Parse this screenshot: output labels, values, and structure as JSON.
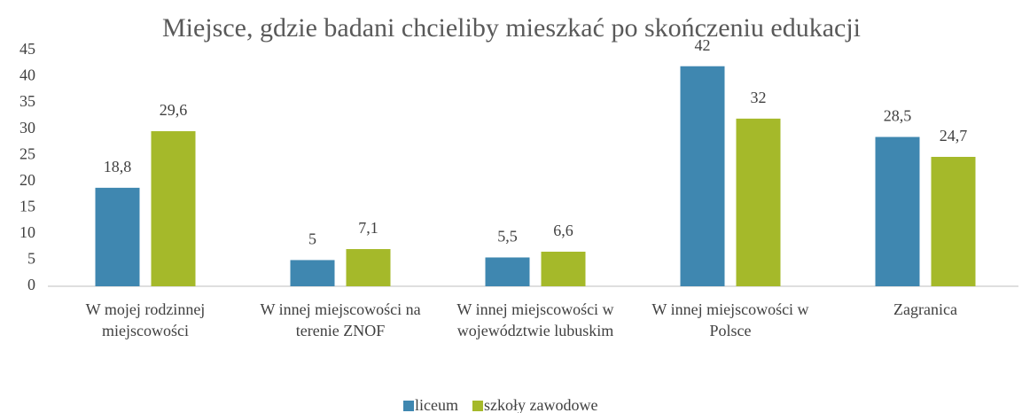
{
  "chart_data": {
    "type": "bar",
    "title": "Miejsce, gdzie badani chcieliby mieszkać po skończeniu edukacji",
    "categories": [
      "W mojej rodzinnej miejscowości",
      "W innej miejscowości na terenie ZNOF",
      "W innej miejscowości w województwie lubuskim",
      "W innej miejscowości w Polsce",
      "Zagranica"
    ],
    "series": [
      {
        "name": "liceum",
        "color": "#3f87b0",
        "values": [
          18.8,
          5,
          5.5,
          42,
          28.5
        ],
        "value_labels": [
          "18,8",
          "5",
          "5,5",
          "42",
          "28,5"
        ]
      },
      {
        "name": "szkoły zawodowe",
        "color": "#a5b92a",
        "values": [
          29.6,
          7.1,
          6.6,
          32,
          24.7
        ],
        "value_labels": [
          "29,6",
          "7,1",
          "6,6",
          "32",
          "24,7"
        ]
      }
    ],
    "ylim": [
      0,
      45
    ],
    "yticks": [
      0,
      5,
      10,
      15,
      20,
      25,
      30,
      35,
      40,
      45
    ],
    "grid": false,
    "legend": "bottom"
  }
}
